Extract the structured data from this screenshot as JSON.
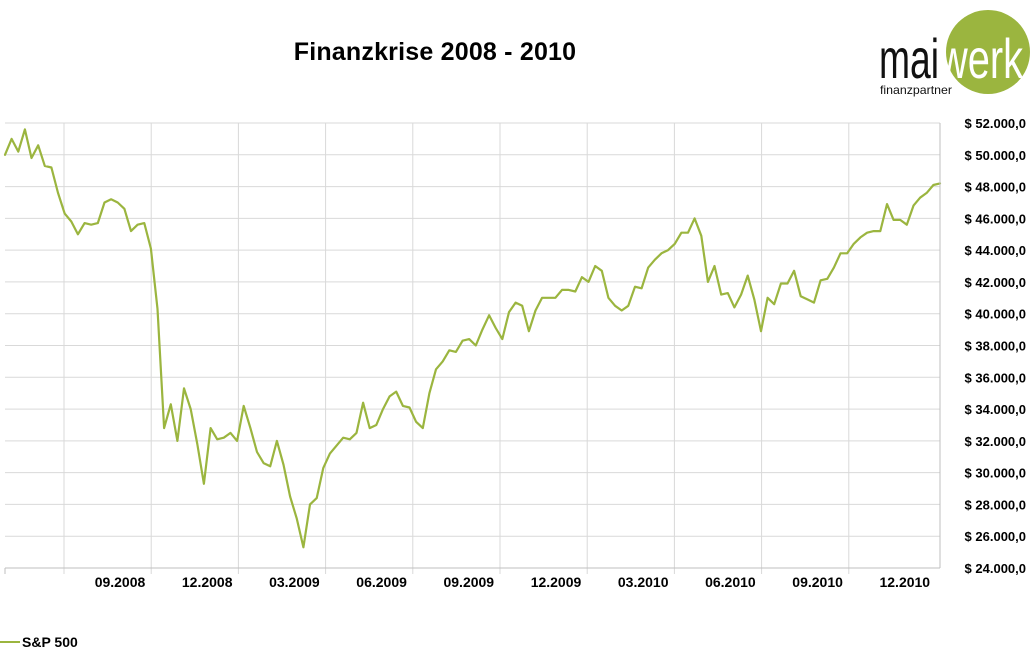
{
  "brand": {
    "name_left": "mai",
    "name_right": "werk",
    "tagline": "finanzpartner",
    "accent_color": "#9BB53F"
  },
  "chart_data": {
    "type": "line",
    "title": "Finanzkrise 2008 - 2010",
    "xlabel": "",
    "ylabel": "",
    "ylim": [
      24000,
      52000
    ],
    "y_tick_labels": [
      "$ 52.000,0",
      "$ 50.000,0",
      "$ 48.000,0",
      "$ 46.000,0",
      "$ 44.000,0",
      "$ 42.000,0",
      "$ 40.000,0",
      "$ 38.000,0",
      "$ 36.000,0",
      "$ 34.000,0",
      "$ 32.000,0",
      "$ 30.000,0",
      "$ 28.000,0",
      "$ 26.000,0",
      "$ 24.000,0"
    ],
    "x_tick_labels": [
      "09.2008",
      "12.2008",
      "03.2009",
      "06.2009",
      "09.2009",
      "12.2009",
      "03.2010",
      "06.2010",
      "09.2010",
      "12.2010"
    ],
    "grid": true,
    "legend_position": "bottom-left",
    "series": [
      {
        "name": "S&P 500",
        "color": "#9BB53F",
        "values": [
          50000,
          51000,
          50200,
          51600,
          49800,
          50600,
          49300,
          49200,
          47600,
          46300,
          45800,
          45000,
          45700,
          45600,
          45700,
          47000,
          47200,
          47000,
          46600,
          45200,
          45600,
          45700,
          44100,
          40300,
          32800,
          34300,
          32000,
          35300,
          34000,
          31800,
          29300,
          32800,
          32100,
          32200,
          32500,
          32000,
          34200,
          32800,
          31300,
          30600,
          30400,
          32000,
          30500,
          28500,
          27100,
          25300,
          28000,
          28400,
          30300,
          31200,
          31700,
          32200,
          32100,
          32500,
          34400,
          32800,
          33000,
          34000,
          34800,
          35100,
          34200,
          34100,
          33200,
          32800,
          35000,
          36500,
          37000,
          37700,
          37600,
          38300,
          38400,
          38000,
          39000,
          39900,
          39100,
          38400,
          40100,
          40700,
          40500,
          38900,
          40200,
          41000,
          41000,
          41000,
          41500,
          41500,
          41400,
          42300,
          42000,
          43000,
          42700,
          41000,
          40500,
          40200,
          40500,
          41700,
          41600,
          42900,
          43400,
          43800,
          44000,
          44400,
          45100,
          45100,
          46000,
          44900,
          42000,
          43000,
          41200,
          41300,
          40400,
          41200,
          42400,
          40900,
          38900,
          41000,
          40600,
          41900,
          41900,
          42700,
          41100,
          40900,
          40700,
          42100,
          42200,
          42900,
          43800,
          43800,
          44400,
          44800,
          45100,
          45200,
          45200,
          46900,
          45900,
          45900,
          45600,
          46800,
          47300,
          47600,
          48100,
          48200
        ]
      }
    ]
  }
}
